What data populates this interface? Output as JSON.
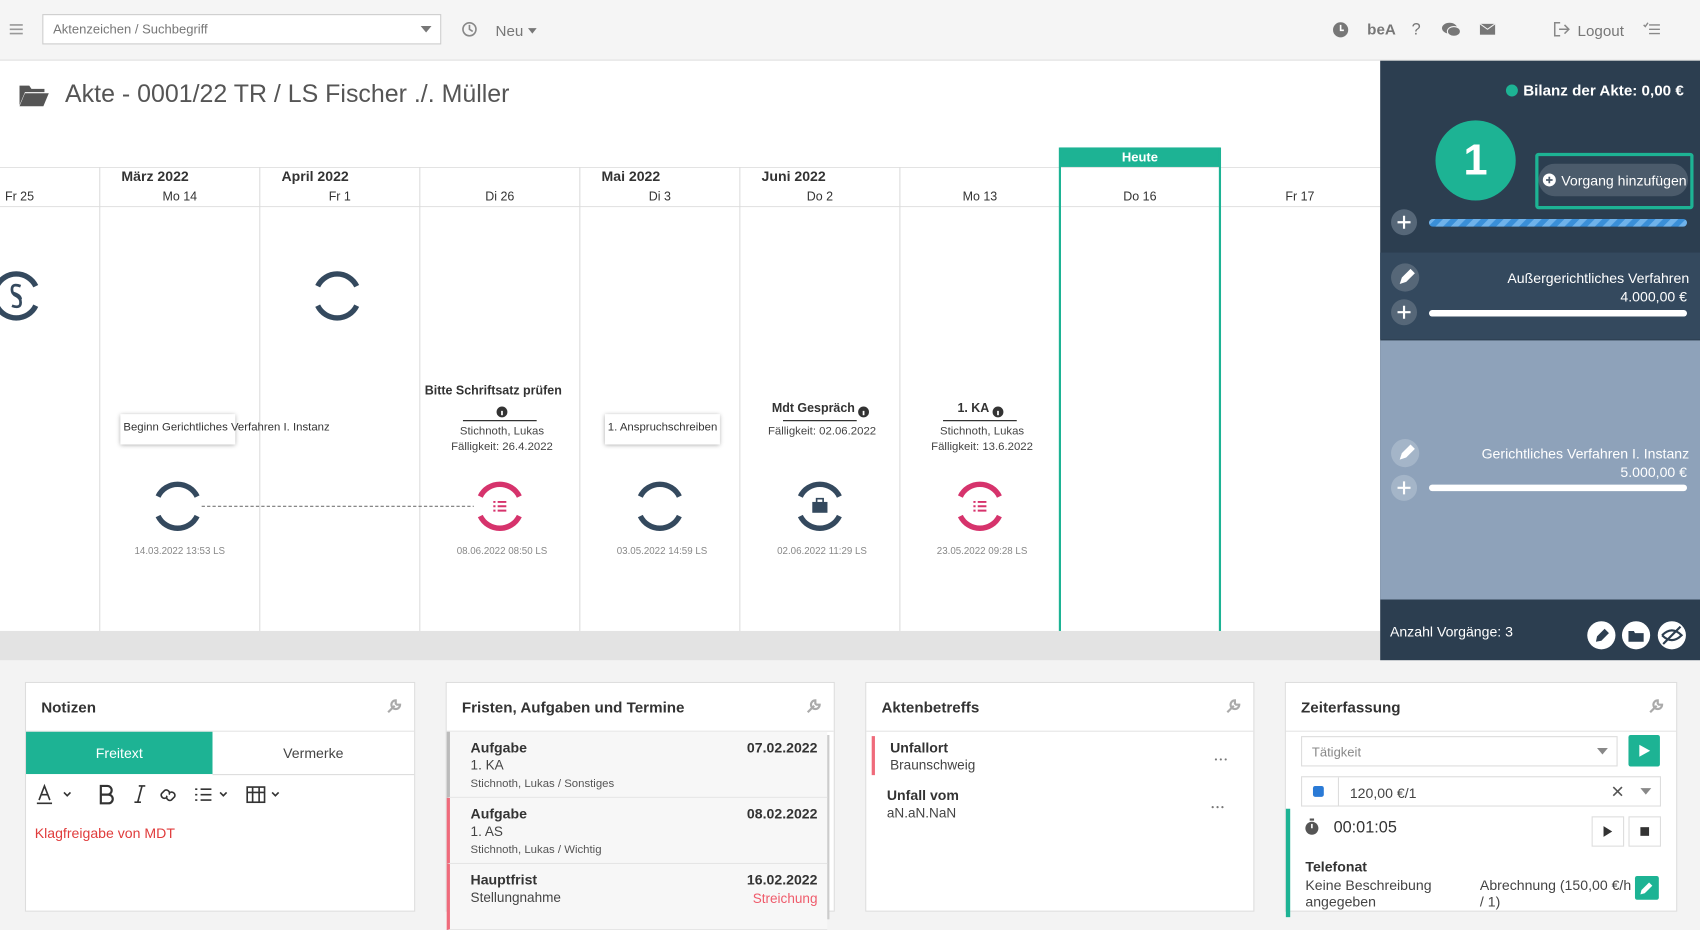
{
  "topbar": {
    "search_placeholder": "Aktenzeichen / Suchbegriff",
    "new": "Neu",
    "bea": "beA",
    "help": "?",
    "logout": "Logout"
  },
  "header": {
    "title": "Akte - 0001/22 TR / LS Fischer ./. Müller"
  },
  "timeline": {
    "today": "Heute",
    "columns": [
      {
        "day": "Fr 25"
      },
      {
        "month": "März 2022",
        "day": "Mo 14",
        "note": "Beginn Gerichtliches Verfahren I. Instanz",
        "stamp": "14.03.2022 13:53 LS"
      },
      {
        "month": "April 2022",
        "day": "Fr 1"
      },
      {
        "day": "Di 26",
        "task": "Bitte Schriftsatz prüfen",
        "assignee": "Stichnoth, Lukas",
        "due": "Fälligkeit: 26.4.2022",
        "stamp": "08.06.2022 08:50 LS"
      },
      {
        "month": "Mai 2022",
        "day": "Di 3",
        "note": "1. Anspruchschreiben",
        "stamp": "03.05.2022 14:59 LS"
      },
      {
        "month": "Juni 2022",
        "day": "Do 2",
        "task": "Mdt Gespräch",
        "due": "Fälligkeit: 02.06.2022",
        "stamp": "02.06.2022 11:29 LS"
      },
      {
        "day": "Mo 13",
        "task": "1. KA",
        "assignee": "Stichnoth, Lukas",
        "due": "Fälligkeit: 13.6.2022",
        "stamp": "23.05.2022 09:28 LS"
      },
      {
        "day": "Do 16"
      },
      {
        "day": "Fr 17"
      }
    ]
  },
  "sidebar": {
    "balance": "Bilanz der Akte: 0,00 €",
    "step": "1",
    "add": "Vorgang hinzufügen",
    "phases": [
      {
        "name": "Außergerichtliches Verfahren",
        "amount": "4.000,00 €"
      },
      {
        "name": "Gerichtliches Verfahren I. Instanz",
        "amount": "5.000,00 €"
      }
    ],
    "count": "Anzahl Vorgänge: 3"
  },
  "notes": {
    "title": "Notizen",
    "tabs": [
      "Freitext",
      "Vermerke"
    ],
    "text": "Klagfreigabe von MDT"
  },
  "deadlines": {
    "title": "Fristen, Aufgaben und Termine",
    "items": [
      {
        "type": "Aufgabe",
        "date": "07.02.2022",
        "title": "1. KA",
        "meta": "Stichnoth, Lukas / Sonstiges"
      },
      {
        "type": "Aufgabe",
        "date": "08.02.2022",
        "title": "1. AS",
        "meta": "Stichnoth, Lukas / Wichtig"
      },
      {
        "type": "Hauptfrist",
        "date": "16.02.2022",
        "title": "Stellungnahme",
        "status": "Streichung"
      }
    ]
  },
  "subjects": {
    "title": "Aktenbetreffs",
    "items": [
      {
        "label": "Unfallort",
        "value": "Braunschweig"
      },
      {
        "label": "Unfall vom",
        "value": "aN.aN.NaN"
      }
    ]
  },
  "time": {
    "title": "Zeiterfassung",
    "activity": "Tätigkeit",
    "rate": "120,00 €/1",
    "timer": "00:01:05",
    "entry": "Telefonat",
    "description": "Keine Beschreibung angegeben",
    "billing": "Abrechnung (150,00 €/h / 1)"
  }
}
